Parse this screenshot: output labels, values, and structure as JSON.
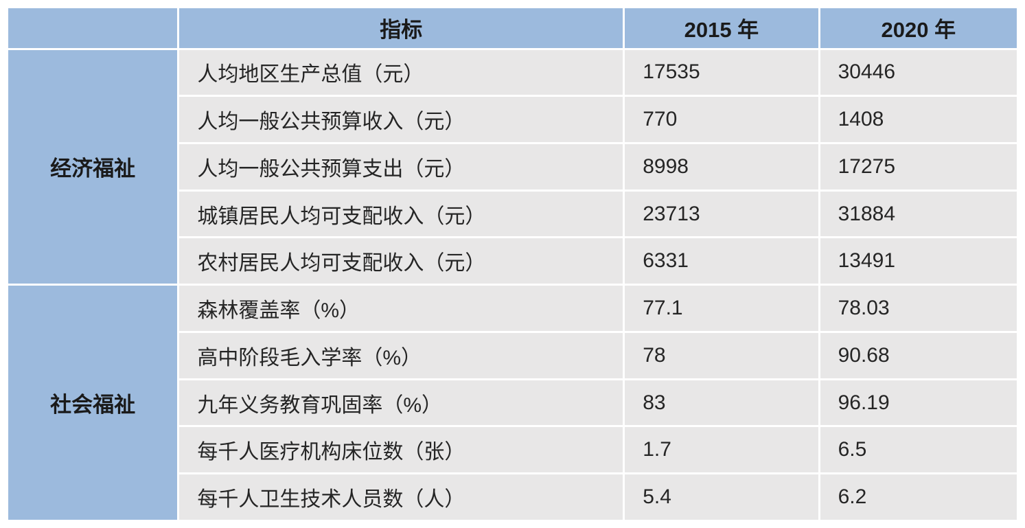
{
  "table": {
    "header": {
      "category": "",
      "indicator": "指标",
      "y2015": "2015 年",
      "y2020": "2020 年"
    },
    "groups": [
      {
        "category": "经济福祉",
        "rows": [
          {
            "indicator": "人均地区生产总值（元）",
            "v2015": "17535",
            "v2020": "30446"
          },
          {
            "indicator": "人均一般公共预算收入（元）",
            "v2015": "770",
            "v2020": "1408"
          },
          {
            "indicator": "人均一般公共预算支出（元）",
            "v2015": "8998",
            "v2020": "17275"
          },
          {
            "indicator": "城镇居民人均可支配收入（元）",
            "v2015": "23713",
            "v2020": "31884"
          },
          {
            "indicator": "农村居民人均可支配收入（元）",
            "v2015": "6331",
            "v2020": "13491"
          }
        ]
      },
      {
        "category": "社会福祉",
        "rows": [
          {
            "indicator": "森林覆盖率（%）",
            "v2015": "77.1",
            "v2020": "78.03"
          },
          {
            "indicator": "高中阶段毛入学率（%）",
            "v2015": "78",
            "v2020": "90.68"
          },
          {
            "indicator": "九年义务教育巩固率（%）",
            "v2015": "83",
            "v2020": "96.19"
          },
          {
            "indicator": "每千人医疗机构床位数（张）",
            "v2015": "1.7",
            "v2020": "6.5"
          },
          {
            "indicator": "每千人卫生技术人员数（人）",
            "v2015": "5.4",
            "v2020": "6.2"
          }
        ]
      }
    ],
    "colors": {
      "header_bg": "#9CBADD",
      "row_bg": "#E8E7E7",
      "text": "#252525",
      "header_text": "#1A1A1A",
      "gutter": "#FFFFFF"
    }
  },
  "chart_data": {
    "type": "table",
    "title": "",
    "columns": [
      "",
      "指标",
      "2015 年",
      "2020 年"
    ],
    "rows": [
      [
        "经济福祉",
        "人均地区生产总值（元）",
        17535,
        30446
      ],
      [
        "经济福祉",
        "人均一般公共预算收入（元）",
        770,
        1408
      ],
      [
        "经济福祉",
        "人均一般公共预算支出（元）",
        8998,
        17275
      ],
      [
        "经济福祉",
        "城镇居民人均可支配收入（元）",
        23713,
        31884
      ],
      [
        "经济福祉",
        "农村居民人均可支配收入（元）",
        6331,
        13491
      ],
      [
        "社会福祉",
        "森林覆盖率（%）",
        77.1,
        78.03
      ],
      [
        "社会福祉",
        "高中阶段毛入学率（%）",
        78,
        90.68
      ],
      [
        "社会福祉",
        "九年义务教育巩固率（%）",
        83,
        96.19
      ],
      [
        "社会福祉",
        "每千人医疗机构床位数（张）",
        1.7,
        6.5
      ],
      [
        "社会福祉",
        "每千人卫生技术人员数（人）",
        5.4,
        6.2
      ]
    ]
  }
}
